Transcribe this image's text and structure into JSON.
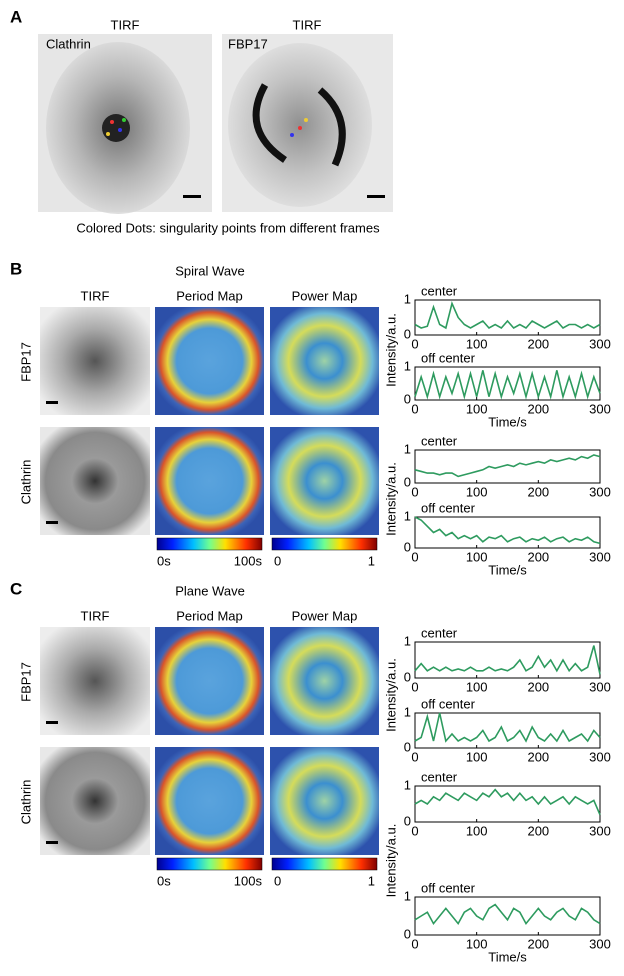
{
  "panel_a": {
    "label": "A",
    "images": [
      {
        "title": "TIRF",
        "label": "Clathrin"
      },
      {
        "title": "TIRF",
        "label": "FBP17"
      }
    ],
    "caption": "Colored Dots: singularity points from different frames"
  },
  "panel_b": {
    "label": "B",
    "title": "Spiral Wave",
    "columns": [
      "TIRF",
      "Period Map",
      "Power Map"
    ],
    "rows": [
      "FBP17",
      "Clathrin"
    ],
    "period_colorbar": [
      "0s",
      "100s"
    ],
    "power_colorbar": [
      "0",
      "1"
    ]
  },
  "panel_c": {
    "label": "C",
    "title": "Plane Wave",
    "columns": [
      "TIRF",
      "Period Map",
      "Power Map"
    ],
    "rows": [
      "FBP17",
      "Clathrin"
    ],
    "period_colorbar": [
      "0s",
      "100s"
    ],
    "power_colorbar": [
      "0",
      "1"
    ]
  },
  "chart_data": [
    {
      "type": "line",
      "title": "center",
      "ylabel": "Intensity/a.u.",
      "color": "#2e9b5f",
      "x": [
        0,
        10,
        20,
        30,
        40,
        50,
        60,
        70,
        80,
        90,
        100,
        110,
        120,
        130,
        140,
        150,
        160,
        170,
        180,
        190,
        200,
        210,
        220,
        230,
        240,
        250,
        260,
        270,
        280,
        290,
        300
      ],
      "values": [
        0.3,
        0.2,
        0.25,
        0.8,
        0.3,
        0.2,
        0.9,
        0.5,
        0.3,
        0.2,
        0.3,
        0.4,
        0.2,
        0.3,
        0.2,
        0.4,
        0.2,
        0.3,
        0.2,
        0.4,
        0.3,
        0.2,
        0.3,
        0.4,
        0.2,
        0.3,
        0.3,
        0.2,
        0.3,
        0.2,
        0.3
      ],
      "xlim": [
        0,
        300
      ],
      "ylim": [
        0,
        1
      ],
      "xticks": [
        0,
        100,
        200,
        300
      ],
      "yticks": [
        0,
        1
      ]
    },
    {
      "type": "line",
      "title": "off center",
      "xlabel": "Time/s",
      "color": "#2e9b5f",
      "x": [
        0,
        10,
        20,
        30,
        40,
        50,
        60,
        70,
        80,
        90,
        100,
        110,
        120,
        130,
        140,
        150,
        160,
        170,
        180,
        190,
        200,
        210,
        220,
        230,
        240,
        250,
        260,
        270,
        280,
        290,
        300
      ],
      "values": [
        0.1,
        0.7,
        0.1,
        0.8,
        0.1,
        0.7,
        0.2,
        0.8,
        0.1,
        0.8,
        0.1,
        0.9,
        0.1,
        0.8,
        0.1,
        0.7,
        0.2,
        0.8,
        0.1,
        0.8,
        0.1,
        0.7,
        0.1,
        0.9,
        0.1,
        0.7,
        0.1,
        0.8,
        0.1,
        0.7,
        0.2
      ],
      "xlim": [
        0,
        300
      ],
      "ylim": [
        0,
        1
      ],
      "xticks": [
        0,
        100,
        200,
        300
      ],
      "yticks": [
        0,
        1
      ]
    },
    {
      "type": "line",
      "title": "center",
      "ylabel": "Intensity/a.u.",
      "color": "#2e9b5f",
      "x": [
        0,
        10,
        20,
        30,
        40,
        50,
        60,
        70,
        80,
        90,
        100,
        110,
        120,
        130,
        140,
        150,
        160,
        170,
        180,
        190,
        200,
        210,
        220,
        230,
        240,
        250,
        260,
        270,
        280,
        290,
        300
      ],
      "values": [
        0.4,
        0.35,
        0.3,
        0.3,
        0.25,
        0.3,
        0.3,
        0.2,
        0.25,
        0.3,
        0.35,
        0.4,
        0.5,
        0.45,
        0.5,
        0.55,
        0.5,
        0.6,
        0.55,
        0.6,
        0.65,
        0.6,
        0.7,
        0.65,
        0.7,
        0.75,
        0.7,
        0.8,
        0.75,
        0.85,
        0.8
      ],
      "xlim": [
        0,
        300
      ],
      "ylim": [
        0,
        1
      ],
      "xticks": [
        0,
        100,
        200,
        300
      ],
      "yticks": [
        0,
        1
      ]
    },
    {
      "type": "line",
      "title": "off center",
      "xlabel": "Time/s",
      "color": "#2e9b5f",
      "x": [
        0,
        10,
        20,
        30,
        40,
        50,
        60,
        70,
        80,
        90,
        100,
        110,
        120,
        130,
        140,
        150,
        160,
        170,
        180,
        190,
        200,
        210,
        220,
        230,
        240,
        250,
        260,
        270,
        280,
        290,
        300
      ],
      "values": [
        1,
        0.9,
        0.7,
        0.5,
        0.6,
        0.4,
        0.5,
        0.3,
        0.4,
        0.3,
        0.4,
        0.2,
        0.35,
        0.3,
        0.4,
        0.2,
        0.3,
        0.35,
        0.2,
        0.3,
        0.25,
        0.35,
        0.2,
        0.3,
        0.35,
        0.2,
        0.3,
        0.25,
        0.35,
        0.2,
        0.15
      ],
      "xlim": [
        0,
        300
      ],
      "ylim": [
        0,
        1
      ],
      "xticks": [
        0,
        100,
        200,
        300
      ],
      "yticks": [
        0,
        1
      ]
    },
    {
      "type": "line",
      "title": "center",
      "ylabel": "Intensity/a.u.",
      "color": "#2e9b5f",
      "x": [
        0,
        10,
        20,
        30,
        40,
        50,
        60,
        70,
        80,
        90,
        100,
        110,
        120,
        130,
        140,
        150,
        160,
        170,
        180,
        190,
        200,
        210,
        220,
        230,
        240,
        250,
        260,
        270,
        280,
        290,
        300
      ],
      "values": [
        0.2,
        0.4,
        0.2,
        0.3,
        0.2,
        0.3,
        0.2,
        0.25,
        0.2,
        0.3,
        0.2,
        0.2,
        0.3,
        0.2,
        0.25,
        0.2,
        0.3,
        0.5,
        0.2,
        0.3,
        0.6,
        0.3,
        0.5,
        0.2,
        0.5,
        0.2,
        0.4,
        0.2,
        0.3,
        0.9,
        0.1
      ],
      "xlim": [
        0,
        300
      ],
      "ylim": [
        0,
        1
      ],
      "xticks": [
        0,
        100,
        200,
        300
      ],
      "yticks": [
        0,
        1
      ]
    },
    {
      "type": "line",
      "title": "off center",
      "color": "#2e9b5f",
      "x": [
        0,
        10,
        20,
        30,
        40,
        50,
        60,
        70,
        80,
        90,
        100,
        110,
        120,
        130,
        140,
        150,
        160,
        170,
        180,
        190,
        200,
        210,
        220,
        230,
        240,
        250,
        260,
        270,
        280,
        290,
        300
      ],
      "values": [
        0.2,
        0.3,
        0.9,
        0.2,
        1.0,
        0.2,
        0.4,
        0.2,
        0.3,
        0.2,
        0.3,
        0.5,
        0.2,
        0.3,
        0.6,
        0.2,
        0.3,
        0.5,
        0.2,
        0.6,
        0.3,
        0.2,
        0.4,
        0.2,
        0.5,
        0.2,
        0.3,
        0.4,
        0.2,
        0.5,
        0.3
      ],
      "xlim": [
        0,
        300
      ],
      "ylim": [
        0,
        1
      ],
      "xticks": [
        0,
        100,
        200,
        300
      ],
      "yticks": [
        0,
        1
      ]
    },
    {
      "type": "line",
      "title": "center",
      "ylabel": "Intensity/a.u.",
      "color": "#2e9b5f",
      "x": [
        0,
        10,
        20,
        30,
        40,
        50,
        60,
        70,
        80,
        90,
        100,
        110,
        120,
        130,
        140,
        150,
        160,
        170,
        180,
        190,
        200,
        210,
        220,
        230,
        240,
        250,
        260,
        270,
        280,
        290,
        300
      ],
      "values": [
        0.5,
        0.6,
        0.5,
        0.7,
        0.6,
        0.8,
        0.7,
        0.6,
        0.8,
        0.7,
        0.6,
        0.8,
        0.7,
        0.9,
        0.7,
        0.8,
        0.6,
        0.8,
        0.6,
        0.7,
        0.5,
        0.7,
        0.5,
        0.6,
        0.7,
        0.5,
        0.7,
        0.6,
        0.5,
        0.6,
        0.2
      ],
      "xlim": [
        0,
        300
      ],
      "ylim": [
        0,
        1
      ],
      "xticks": [
        0,
        100,
        200,
        300
      ],
      "yticks": [
        0,
        1
      ]
    },
    {
      "type": "line",
      "title": "off center",
      "xlabel": "Time/s",
      "color": "#2e9b5f",
      "x": [
        0,
        10,
        20,
        30,
        40,
        50,
        60,
        70,
        80,
        90,
        100,
        110,
        120,
        130,
        140,
        150,
        160,
        170,
        180,
        190,
        200,
        210,
        220,
        230,
        240,
        250,
        260,
        270,
        280,
        290,
        300
      ],
      "values": [
        0.4,
        0.5,
        0.6,
        0.3,
        0.5,
        0.7,
        0.5,
        0.3,
        0.6,
        0.7,
        0.5,
        0.4,
        0.7,
        0.8,
        0.6,
        0.4,
        0.7,
        0.6,
        0.3,
        0.5,
        0.7,
        0.5,
        0.4,
        0.6,
        0.7,
        0.5,
        0.4,
        0.7,
        0.6,
        0.4,
        0.3
      ],
      "xlim": [
        0,
        300
      ],
      "ylim": [
        0,
        1
      ],
      "xticks": [
        0,
        100,
        200,
        300
      ],
      "yticks": [
        0,
        1
      ]
    }
  ]
}
